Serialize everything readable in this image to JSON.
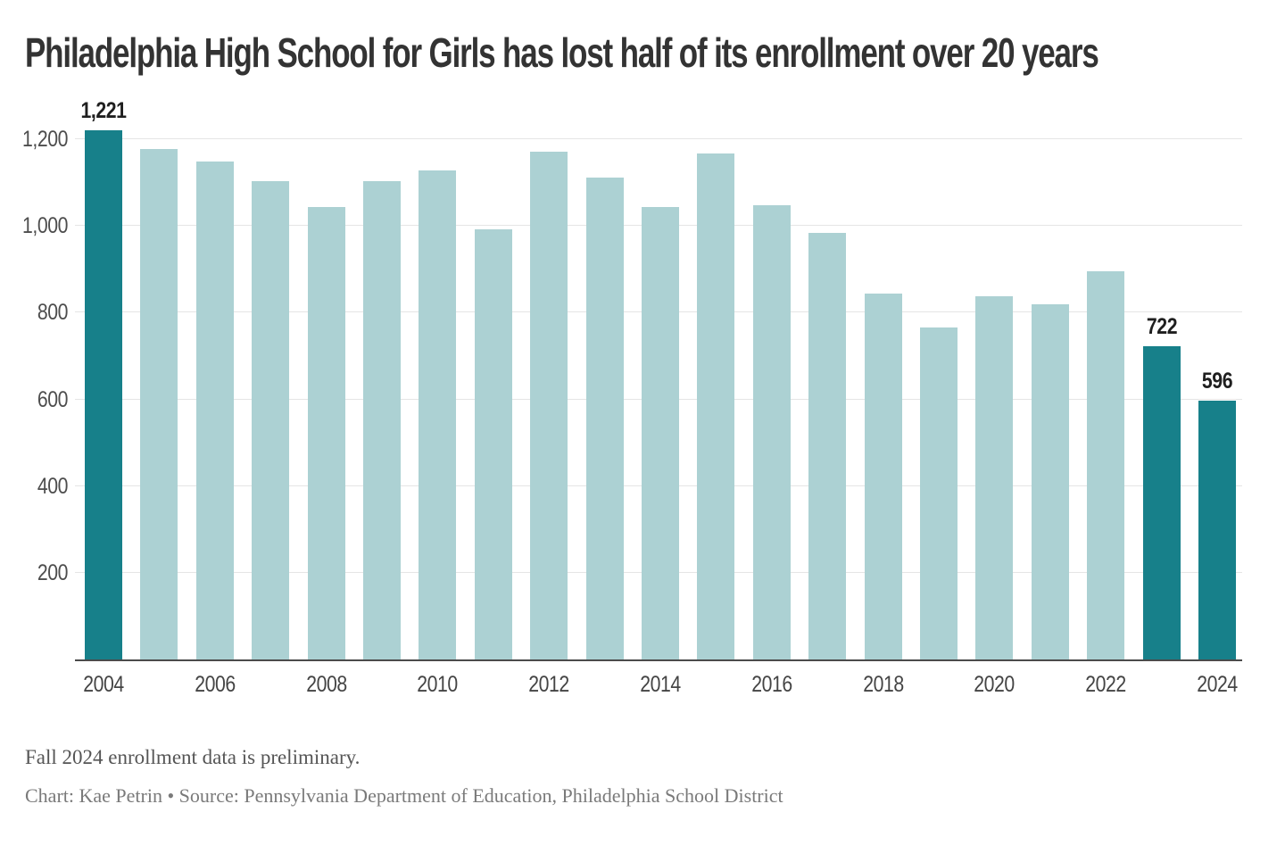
{
  "title": "Philadelphia High School for Girls has lost half of its enrollment over 20 years",
  "notes": {
    "footnote": "Fall 2024 enrollment data is preliminary.",
    "credit": "Chart: Kae Petrin • Source: Pennsylvania Department of Education, Philadelphia School District"
  },
  "colors": {
    "bar": "#acd1d3",
    "highlight": "#17808a",
    "grid": "#e5e5e5",
    "axis": "#4b4b4b",
    "title_text": "#333333",
    "tick_text": "#4d4d4d",
    "value_label_text": "#1f1f1f",
    "footnote_text": "#555555",
    "credit_text": "#7a7a7a"
  },
  "chart_data": {
    "type": "bar",
    "title": "Philadelphia High School for Girls has lost half of its enrollment over 20 years",
    "xlabel": "",
    "ylabel": "",
    "x": [
      2004,
      2005,
      2006,
      2007,
      2008,
      2009,
      2010,
      2011,
      2012,
      2013,
      2014,
      2015,
      2016,
      2017,
      2018,
      2019,
      2020,
      2021,
      2022,
      2023,
      2024
    ],
    "values": [
      1221,
      1177,
      1148,
      1103,
      1044,
      1104,
      1127,
      992,
      1171,
      1112,
      1043,
      1168,
      1048,
      984,
      843,
      765,
      838,
      819,
      896,
      722,
      596
    ],
    "highlighted_years": [
      2004,
      2023,
      2024
    ],
    "labeled_points": [
      {
        "year": 2004,
        "label": "1,221"
      },
      {
        "year": 2023,
        "label": "722"
      },
      {
        "year": 2024,
        "label": "596"
      }
    ],
    "y_ticks": [
      200,
      400,
      600,
      800,
      1000,
      1200
    ],
    "y_tick_labels": [
      "200",
      "400",
      "600",
      "800",
      "1,000",
      "1,200"
    ],
    "x_ticks": [
      2004,
      2006,
      2008,
      2010,
      2012,
      2014,
      2016,
      2018,
      2020,
      2022,
      2024
    ],
    "ylim": [
      0,
      1235
    ],
    "grid": "horizontal",
    "legend": "none"
  }
}
